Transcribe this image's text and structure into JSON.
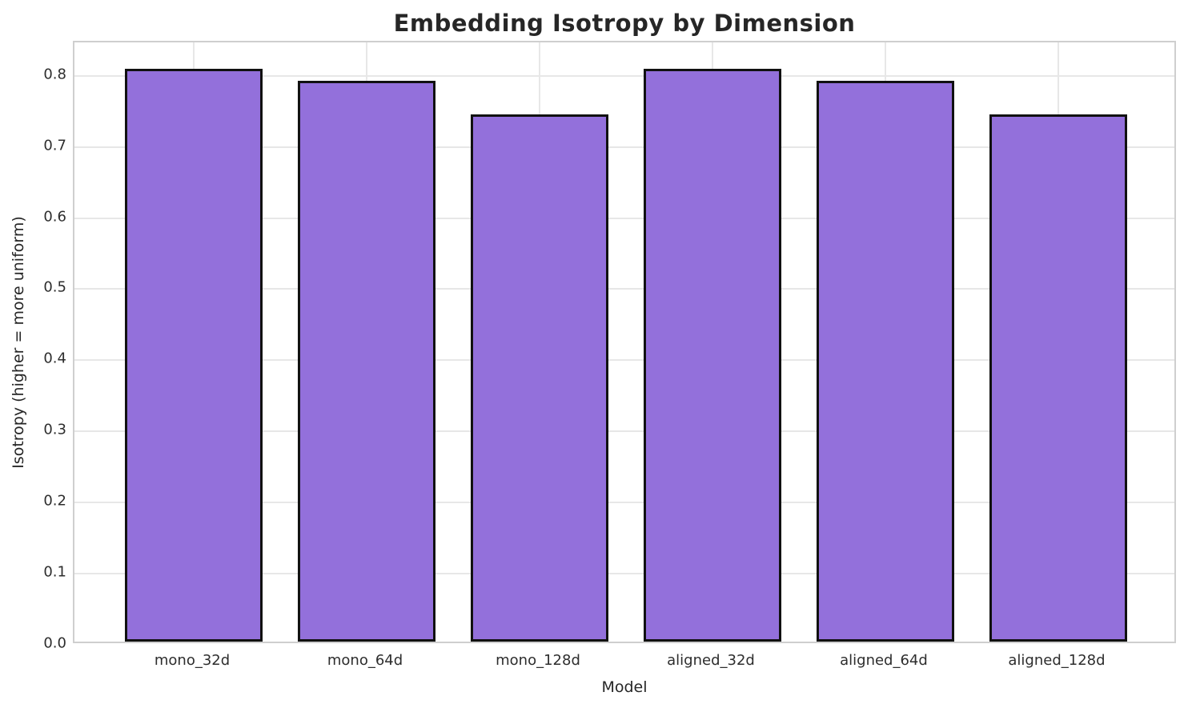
{
  "chart_data": {
    "type": "bar",
    "title": "Embedding Isotropy by Dimension",
    "xlabel": "Model",
    "ylabel": "Isotropy (higher = more uniform)",
    "categories": [
      "mono_32d",
      "mono_64d",
      "mono_128d",
      "aligned_32d",
      "aligned_64d",
      "aligned_128d"
    ],
    "values": [
      0.805,
      0.788,
      0.741,
      0.805,
      0.788,
      0.741
    ],
    "yticks": [
      0.0,
      0.1,
      0.2,
      0.3,
      0.4,
      0.5,
      0.6,
      0.7,
      0.8
    ],
    "ylim": [
      0,
      0.847
    ],
    "xlim": [
      -0.69,
      5.69
    ],
    "bar_width_fraction": 0.8,
    "grid": true,
    "legend_position": "none",
    "colors": {
      "bar_fill": "#9370DB",
      "bar_edge": "#111111",
      "grid": "#e7e7e7",
      "spine": "#cfcfcf",
      "text": "#262626",
      "background": "#ffffff"
    }
  }
}
